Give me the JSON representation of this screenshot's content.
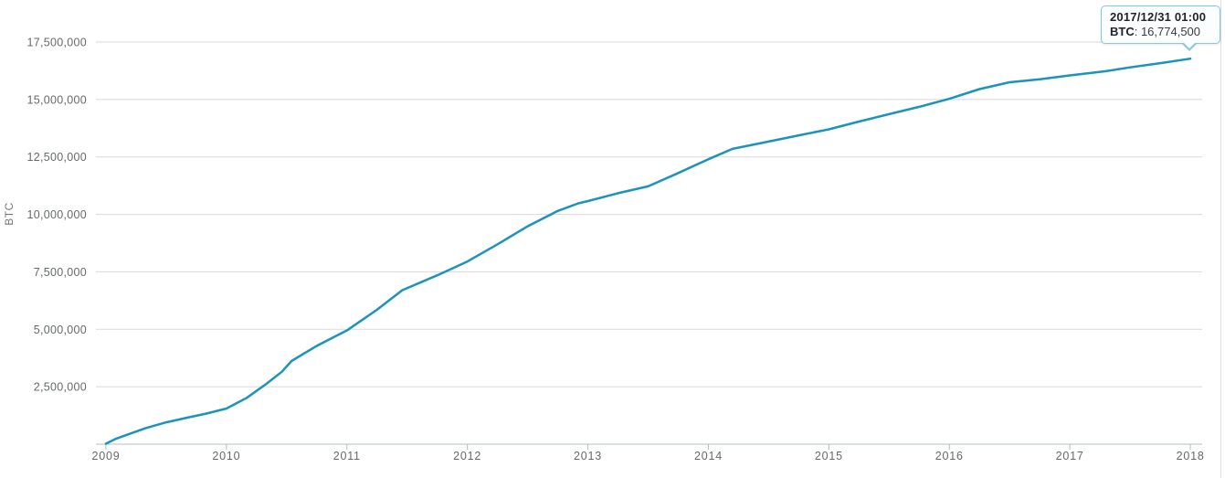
{
  "colors": {
    "line": "#1d93ba",
    "grid": "#d8d8d8",
    "axis": "#b3bcbf",
    "tick_label": "#66696b",
    "axis_title": "#75777a",
    "tooltip_border": "#8ac6dd",
    "tooltip_background": "#fbfeff"
  },
  "tooltip": {
    "datetime": "2017/12/31 01:00",
    "series_label": "BTC",
    "separator": ": ",
    "value": "16,774,500"
  },
  "chart_data": {
    "type": "line",
    "title": "",
    "xlabel": "",
    "ylabel": "BTC",
    "legend": "none",
    "grid": "horizontal-only",
    "x_range": [
      2008.917,
      2018.098
    ],
    "y_range": [
      0,
      17900000
    ],
    "x_ticks": [
      2009,
      2010,
      2011,
      2012,
      2013,
      2014,
      2015,
      2016,
      2017,
      2018
    ],
    "x_tick_labels": [
      "2009",
      "2010",
      "2011",
      "2012",
      "2013",
      "2014",
      "2015",
      "2016",
      "2017",
      "2018"
    ],
    "y_ticks": [
      2500000,
      5000000,
      7500000,
      10000000,
      12500000,
      15000000,
      17500000
    ],
    "y_tick_labels": [
      "2,500,000",
      "5,000,000",
      "7,500,000",
      "10,000,000",
      "12,500,000",
      "15,000,000",
      "17,500,000"
    ],
    "series": [
      {
        "name": "BTC",
        "color": "#1d93ba",
        "points": [
          [
            2009.0,
            20000
          ],
          [
            2009.08,
            230000
          ],
          [
            2009.17,
            400000
          ],
          [
            2009.33,
            700000
          ],
          [
            2009.5,
            950000
          ],
          [
            2009.67,
            1150000
          ],
          [
            2009.83,
            1330000
          ],
          [
            2010.0,
            1550000
          ],
          [
            2010.17,
            2020000
          ],
          [
            2010.33,
            2620000
          ],
          [
            2010.46,
            3150000
          ],
          [
            2010.54,
            3620000
          ],
          [
            2010.75,
            4280000
          ],
          [
            2011.0,
            4950000
          ],
          [
            2011.25,
            5850000
          ],
          [
            2011.46,
            6700000
          ],
          [
            2011.75,
            7350000
          ],
          [
            2012.0,
            7950000
          ],
          [
            2012.25,
            8700000
          ],
          [
            2012.5,
            9480000
          ],
          [
            2012.75,
            10150000
          ],
          [
            2012.92,
            10480000
          ],
          [
            2013.0,
            10580000
          ],
          [
            2013.25,
            10920000
          ],
          [
            2013.5,
            11220000
          ],
          [
            2013.75,
            11800000
          ],
          [
            2014.0,
            12400000
          ],
          [
            2014.2,
            12850000
          ],
          [
            2014.5,
            13170000
          ],
          [
            2014.75,
            13440000
          ],
          [
            2015.0,
            13700000
          ],
          [
            2015.25,
            14040000
          ],
          [
            2015.5,
            14360000
          ],
          [
            2015.75,
            14680000
          ],
          [
            2016.0,
            15030000
          ],
          [
            2016.25,
            15450000
          ],
          [
            2016.5,
            15750000
          ],
          [
            2016.75,
            15880000
          ],
          [
            2017.0,
            16050000
          ],
          [
            2017.3,
            16230000
          ],
          [
            2017.5,
            16400000
          ],
          [
            2017.75,
            16580000
          ],
          [
            2018.0,
            16774500
          ]
        ]
      }
    ],
    "highlighted_point": {
      "x": 2018.0,
      "y": 16774500,
      "label": "2017/12/31 01:00"
    }
  }
}
